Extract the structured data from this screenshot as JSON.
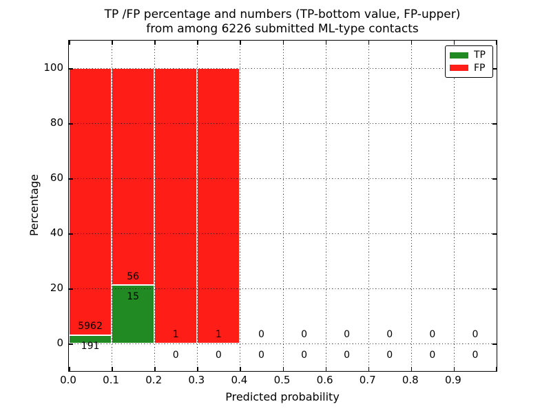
{
  "figure": {
    "background": "#ffffff"
  },
  "chart_data": {
    "type": "bar",
    "stacked": true,
    "title_line1": "TP /FP percentage and numbers (TP-bottom value, FP-upper)",
    "title_line2": "from among 6226 submitted ML-type contacts",
    "total_contacts": 6226,
    "xlabel": "Predicted probability",
    "ylabel": "Percentage",
    "xlim": [
      0.0,
      1.0
    ],
    "ylim": [
      -10,
      110
    ],
    "x_tick_labels": [
      "0.0",
      "0.1",
      "0.2",
      "0.3",
      "0.4",
      "0.5",
      "0.6",
      "0.7",
      "0.8",
      "0.9"
    ],
    "y_tick_values": [
      0,
      20,
      40,
      60,
      80,
      100
    ],
    "y_tick_labels": [
      "0",
      "20",
      "40",
      "60",
      "80",
      "100"
    ],
    "grid": {
      "enabled": true,
      "style": "dotted",
      "color": "#000000"
    },
    "colors": {
      "tp": "#228a22",
      "fp": "#ff1d18",
      "bar_edge": "#ffffff"
    },
    "legend": {
      "position": "upper right",
      "entries": [
        {
          "label": "TP",
          "color": "#228a22"
        },
        {
          "label": "FP",
          "color": "#ff1d18"
        }
      ]
    },
    "bins": [
      {
        "range": [
          0.0,
          0.1
        ],
        "tp": 191,
        "fp": 5962
      },
      {
        "range": [
          0.1,
          0.2
        ],
        "tp": 15,
        "fp": 56
      },
      {
        "range": [
          0.2,
          0.3
        ],
        "tp": 0,
        "fp": 1
      },
      {
        "range": [
          0.3,
          0.4
        ],
        "tp": 0,
        "fp": 1
      },
      {
        "range": [
          0.4,
          0.5
        ],
        "tp": 0,
        "fp": 0
      },
      {
        "range": [
          0.5,
          0.6
        ],
        "tp": 0,
        "fp": 0
      },
      {
        "range": [
          0.6,
          0.7
        ],
        "tp": 0,
        "fp": 0
      },
      {
        "range": [
          0.7,
          0.8
        ],
        "tp": 0,
        "fp": 0
      },
      {
        "range": [
          0.8,
          0.9
        ],
        "tp": 0,
        "fp": 0
      },
      {
        "range": [
          0.9,
          1.0
        ],
        "tp": 0,
        "fp": 0
      }
    ]
  }
}
